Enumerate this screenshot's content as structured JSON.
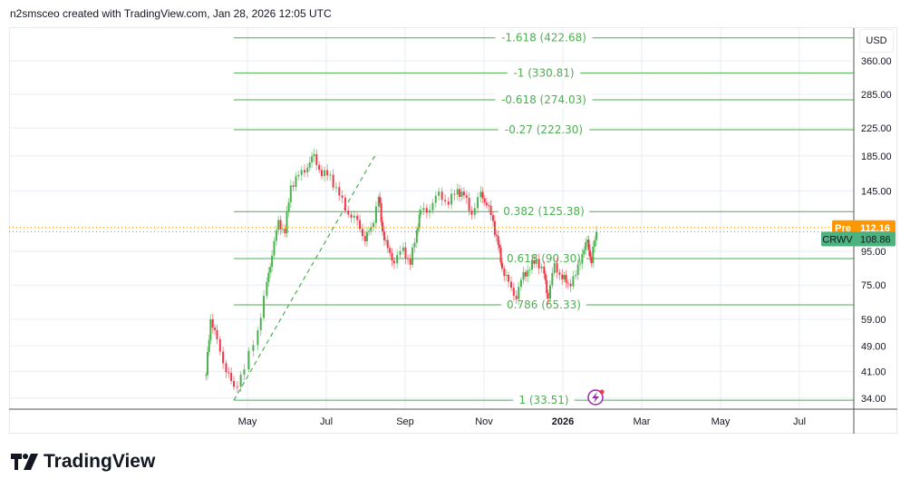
{
  "header": {
    "text": "n2smsceo created with TradingView.com, Jan 28, 2026 12:05 UTC"
  },
  "logo": {
    "text": "TradingView"
  },
  "currency": "USD",
  "colors": {
    "up": "#4caf50",
    "down": "#f23645",
    "fib": "#4caf50",
    "pre": "#ff9800",
    "last": "#4db37e",
    "grid": "#e6edf3"
  },
  "chart_data": {
    "type": "candlestick",
    "symbol": "CRWV",
    "yscale": "log",
    "ylim": [
      31,
      480
    ],
    "y_ticks": [
      360,
      285,
      225,
      185,
      145,
      95,
      75,
      59,
      49,
      41,
      34
    ],
    "y_tick_labels": [
      "360.00",
      "285.00",
      "225.00",
      "185.00",
      "145.00",
      "95.00",
      "75.00",
      "59.00",
      "49.00",
      "41.00",
      "34.00"
    ],
    "x_ticks": [
      {
        "date": "2025-05-01",
        "label": "May"
      },
      {
        "date": "2025-07-01",
        "label": "Jul"
      },
      {
        "date": "2025-09-01",
        "label": "Sep"
      },
      {
        "date": "2025-11-01",
        "label": "Nov"
      },
      {
        "date": "2026-01-01",
        "label": "2026"
      },
      {
        "date": "2026-03-01",
        "label": "Mar"
      },
      {
        "date": "2026-05-01",
        "label": "May"
      },
      {
        "date": "2026-07-01",
        "label": "Jul"
      }
    ],
    "closes": [
      [
        "2025-03-30",
        40
      ],
      [
        "2025-04-03",
        60
      ],
      [
        "2025-04-08",
        50
      ],
      [
        "2025-04-15",
        42
      ],
      [
        "2025-04-21",
        36
      ],
      [
        "2025-04-29",
        42
      ],
      [
        "2025-05-09",
        55
      ],
      [
        "2025-05-16",
        75
      ],
      [
        "2025-05-20",
        95
      ],
      [
        "2025-05-25",
        115
      ],
      [
        "2025-05-30",
        110
      ],
      [
        "2025-06-04",
        150
      ],
      [
        "2025-06-10",
        160
      ],
      [
        "2025-06-17",
        175
      ],
      [
        "2025-06-22",
        182
      ],
      [
        "2025-06-28",
        165
      ],
      [
        "2025-07-04",
        160
      ],
      [
        "2025-07-11",
        140
      ],
      [
        "2025-07-18",
        125
      ],
      [
        "2025-07-25",
        115
      ],
      [
        "2025-07-31",
        105
      ],
      [
        "2025-08-05",
        110
      ],
      [
        "2025-08-11",
        140
      ],
      [
        "2025-08-14",
        110
      ],
      [
        "2025-08-18",
        95
      ],
      [
        "2025-08-23",
        90
      ],
      [
        "2025-08-30",
        95
      ],
      [
        "2025-09-05",
        88
      ],
      [
        "2025-09-10",
        110
      ],
      [
        "2025-09-13",
        125
      ],
      [
        "2025-09-20",
        130
      ],
      [
        "2025-09-27",
        140
      ],
      [
        "2025-10-04",
        135
      ],
      [
        "2025-10-11",
        145
      ],
      [
        "2025-10-16",
        140
      ],
      [
        "2025-10-22",
        125
      ],
      [
        "2025-10-29",
        140
      ],
      [
        "2025-11-03",
        135
      ],
      [
        "2025-11-08",
        115
      ],
      [
        "2025-11-12",
        100
      ],
      [
        "2025-11-15",
        85
      ],
      [
        "2025-11-20",
        75
      ],
      [
        "2025-11-26",
        70
      ],
      [
        "2025-12-01",
        80
      ],
      [
        "2025-12-06",
        85
      ],
      [
        "2025-12-11",
        90
      ],
      [
        "2025-12-17",
        80
      ],
      [
        "2025-12-20",
        70
      ],
      [
        "2025-12-25",
        85
      ],
      [
        "2025-12-31",
        80
      ],
      [
        "2026-01-05",
        75
      ],
      [
        "2026-01-11",
        80
      ],
      [
        "2026-01-16",
        95
      ],
      [
        "2026-01-20",
        100
      ],
      [
        "2026-01-23",
        90
      ],
      [
        "2026-01-27",
        108.86
      ]
    ],
    "fib_levels": [
      {
        "label": "-1.618 (422.68)",
        "price": 422.68
      },
      {
        "label": "-1 (330.81)",
        "price": 330.81
      },
      {
        "label": "-0.618 (274.03)",
        "price": 274.03
      },
      {
        "label": "-0.27 (222.30)",
        "price": 222.3
      },
      {
        "label": "0.382 (125.38)",
        "price": 125.38
      },
      {
        "label": "0.618 (90.30)",
        "price": 90.3
      },
      {
        "label": "0.786 (65.33)",
        "price": 65.33
      },
      {
        "label": "1 (33.51)",
        "price": 33.51
      }
    ],
    "fib_anchor": {
      "start": [
        "2025-04-21",
        33.51
      ],
      "end": [
        "2025-08-08",
        185
      ]
    },
    "pre_market": {
      "label": "Pre",
      "price": 112.16,
      "text": "112.16"
    },
    "last": {
      "label": "CRWV",
      "price": 108.86,
      "text": "108.86"
    }
  }
}
